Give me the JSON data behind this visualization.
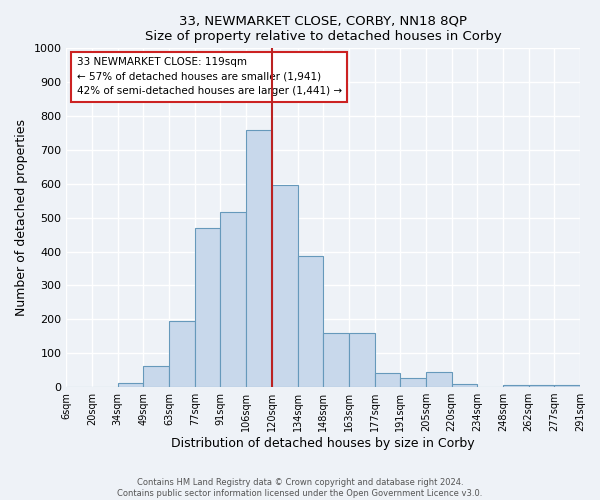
{
  "title": "33, NEWMARKET CLOSE, CORBY, NN18 8QP",
  "subtitle": "Size of property relative to detached houses in Corby",
  "xlabel": "Distribution of detached houses by size in Corby",
  "ylabel": "Number of detached properties",
  "bin_labels": [
    "6sqm",
    "20sqm",
    "34sqm",
    "49sqm",
    "63sqm",
    "77sqm",
    "91sqm",
    "106sqm",
    "120sqm",
    "134sqm",
    "148sqm",
    "163sqm",
    "177sqm",
    "191sqm",
    "205sqm",
    "220sqm",
    "234sqm",
    "248sqm",
    "262sqm",
    "277sqm",
    "291sqm"
  ],
  "bar_heights": [
    0,
    0,
    13,
    63,
    195,
    470,
    518,
    760,
    597,
    388,
    160,
    160,
    42,
    28,
    45,
    10,
    0,
    5,
    5,
    7
  ],
  "bar_color": "#c8d8eb",
  "bar_edge_color": "#6699bb",
  "vline_color": "#bb2222",
  "ylim": [
    0,
    1000
  ],
  "yticks": [
    0,
    100,
    200,
    300,
    400,
    500,
    600,
    700,
    800,
    900,
    1000
  ],
  "annotation_line1": "33 NEWMARKET CLOSE: 119sqm",
  "annotation_line2": "← 57% of detached houses are smaller (1,941)",
  "annotation_line3": "42% of semi-detached houses are larger (1,441) →",
  "annotation_box_color": "#ffffff",
  "annotation_border_color": "#cc2222",
  "footer_line1": "Contains HM Land Registry data © Crown copyright and database right 2024.",
  "footer_line2": "Contains public sector information licensed under the Open Government Licence v3.0.",
  "bg_color": "#eef2f7",
  "grid_color": "#ffffff"
}
